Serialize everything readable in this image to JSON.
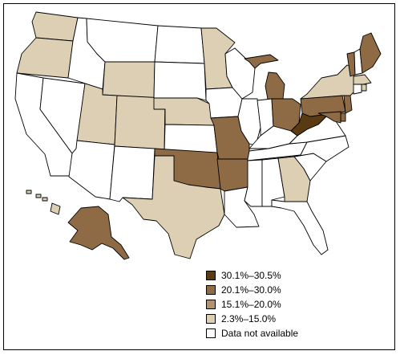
{
  "legend": {
    "items": [
      {
        "label": "30.1%–30.5%",
        "color": "#5a3a12"
      },
      {
        "label": "20.1%–30.0%",
        "color": "#8e6b45"
      },
      {
        "label": "15.1%–20.0%",
        "color": "#b39270"
      },
      {
        "label": "2.3%–15.0%",
        "color": "#ddcfb4"
      },
      {
        "label": "Data not available",
        "color": "#ffffff"
      }
    ]
  },
  "states": {
    "WA": "2.3%–15.0%",
    "OR": "2.3%–15.0%",
    "CA": "Data not available",
    "NV": "Data not available",
    "ID": "Data not available",
    "MT": "Data not available",
    "WY": "2.3%–15.0%",
    "UT": "2.3%–15.0%",
    "AZ": "Data not available",
    "CO": "2.3%–15.0%",
    "NM": "Data not available",
    "ND": "Data not available",
    "SD": "Data not available",
    "NE": "2.3%–15.0%",
    "KS": "Data not available",
    "OK": "20.1%–30.0%",
    "TX": "2.3%–15.0%",
    "MN": "2.3%–15.0%",
    "IA": "Data not available",
    "MO": "20.1%–30.0%",
    "AR": "20.1%–30.0%",
    "LA": "Data not available",
    "WI": "Data not available",
    "IL": "Data not available",
    "MI": "20.1%–30.0%",
    "IN": "Data not available",
    "OH": "20.1%–30.0%",
    "KY": "Data not available",
    "TN": "Data not available",
    "MS": "Data not available",
    "AL": "Data not available",
    "GA": "2.3%–15.0%",
    "FL": "Data not available",
    "SC": "Data not available",
    "NC": "Data not available",
    "VA": "Data not available",
    "WV": "30.1%–30.5%",
    "PA": "20.1%–30.0%",
    "NY": "2.3%–15.0%",
    "VT": "20.1%–30.0%",
    "NH": "Data not available",
    "ME": "20.1%–30.0%",
    "MA": "2.3%–15.0%",
    "RI": "2.3%–15.0%",
    "CT": "Data not available",
    "NJ": "20.1%–30.0%",
    "DE": "20.1%–30.0%",
    "MD": "20.1%–30.0%",
    "AK": "20.1%–30.0%",
    "HI": "2.3%–15.0%"
  }
}
